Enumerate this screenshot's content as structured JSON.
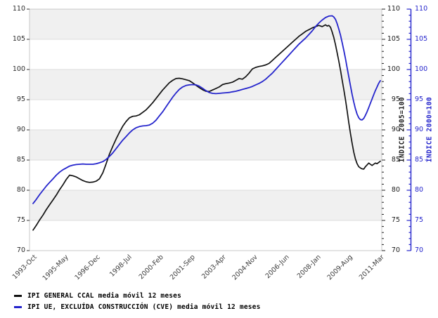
{
  "chart_data": {
    "type": "line",
    "title": "",
    "x_axis": {
      "tick_labels": [
        "1993-Oct",
        "1995-May",
        "1996-Dec",
        "1998-Jul",
        "2000-Feb",
        "2001-Sep",
        "2003-Apr",
        "2004-Nov",
        "2006-Jun",
        "2008-Jan",
        "2009-Aug",
        "2011-Mar"
      ],
      "tick_months": [
        0,
        19,
        38,
        57,
        76,
        95,
        114,
        133,
        152,
        171,
        190,
        209
      ],
      "months_total": 210
    },
    "y_axis": {
      "min": 70,
      "max": 110,
      "major_step": 5,
      "minor_step": 1,
      "major_ticks": [
        110,
        105,
        100,
        95,
        90,
        85,
        80,
        75,
        70
      ]
    },
    "axes_titles": {
      "right_black": {
        "title": "ÍNDICE 2005=100",
        "color": "#1a1a1a"
      },
      "right_blue": {
        "title": "ÍNDICE 2000=100",
        "color": "#2424cc"
      }
    },
    "bands": {
      "color": "#f0f0f0",
      "line_color": "#dcdcdc",
      "border_color": "#c8c8c8",
      "ranges": [
        [
          105,
          110
        ],
        [
          95,
          100
        ],
        [
          85,
          90
        ],
        [
          75,
          80
        ]
      ]
    },
    "legend_position": "bottom-left",
    "series": [
      {
        "name": "IPI GENERAL CCAL media móvil 12 meses",
        "color": "#111111",
        "points": [
          [
            0,
            73.4
          ],
          [
            2,
            74.2
          ],
          [
            4,
            75.1
          ],
          [
            6,
            75.9
          ],
          [
            8,
            76.8
          ],
          [
            10,
            77.6
          ],
          [
            12,
            78.4
          ],
          [
            14,
            79.2
          ],
          [
            16,
            80.1
          ],
          [
            18,
            80.9
          ],
          [
            20,
            81.8
          ],
          [
            22,
            82.5
          ],
          [
            24,
            82.4
          ],
          [
            26,
            82.2
          ],
          [
            28,
            81.9
          ],
          [
            30,
            81.6
          ],
          [
            32,
            81.4
          ],
          [
            34,
            81.3
          ],
          [
            36,
            81.35
          ],
          [
            38,
            81.5
          ],
          [
            40,
            81.9
          ],
          [
            42,
            82.9
          ],
          [
            44,
            84.4
          ],
          [
            46,
            86.0
          ],
          [
            48,
            87.3
          ],
          [
            50,
            88.5
          ],
          [
            52,
            89.6
          ],
          [
            54,
            90.6
          ],
          [
            56,
            91.4
          ],
          [
            58,
            92.0
          ],
          [
            60,
            92.25
          ],
          [
            62,
            92.3
          ],
          [
            64,
            92.5
          ],
          [
            66,
            92.9
          ],
          [
            68,
            93.3
          ],
          [
            70,
            93.9
          ],
          [
            72,
            94.5
          ],
          [
            74,
            95.2
          ],
          [
            76,
            95.9
          ],
          [
            78,
            96.6
          ],
          [
            80,
            97.2
          ],
          [
            82,
            97.8
          ],
          [
            84,
            98.2
          ],
          [
            86,
            98.5
          ],
          [
            88,
            98.55
          ],
          [
            90,
            98.45
          ],
          [
            92,
            98.3
          ],
          [
            94,
            98.15
          ],
          [
            96,
            97.8
          ],
          [
            98,
            97.4
          ],
          [
            100,
            97.0
          ],
          [
            102,
            96.65
          ],
          [
            104,
            96.4
          ],
          [
            106,
            96.35
          ],
          [
            108,
            96.6
          ],
          [
            110,
            96.85
          ],
          [
            112,
            97.1
          ],
          [
            114,
            97.5
          ],
          [
            116,
            97.65
          ],
          [
            118,
            97.75
          ],
          [
            120,
            97.9
          ],
          [
            122,
            98.2
          ],
          [
            124,
            98.5
          ],
          [
            126,
            98.4
          ],
          [
            128,
            98.8
          ],
          [
            130,
            99.4
          ],
          [
            132,
            100.1
          ],
          [
            134,
            100.35
          ],
          [
            136,
            100.5
          ],
          [
            138,
            100.6
          ],
          [
            140,
            100.75
          ],
          [
            142,
            101.0
          ],
          [
            144,
            101.5
          ],
          [
            146,
            102.0
          ],
          [
            148,
            102.5
          ],
          [
            150,
            103.0
          ],
          [
            152,
            103.5
          ],
          [
            154,
            104.0
          ],
          [
            156,
            104.5
          ],
          [
            158,
            105.0
          ],
          [
            160,
            105.5
          ],
          [
            162,
            105.9
          ],
          [
            164,
            106.3
          ],
          [
            166,
            106.6
          ],
          [
            168,
            106.9
          ],
          [
            170,
            107.1
          ],
          [
            172,
            107.3
          ],
          [
            174,
            107.1
          ],
          [
            176,
            107.4
          ],
          [
            177,
            107.2
          ],
          [
            178,
            107.3
          ],
          [
            179,
            107.0
          ],
          [
            180,
            106.2
          ],
          [
            181,
            105.3
          ],
          [
            182,
            104.1
          ],
          [
            183,
            102.8
          ],
          [
            184,
            101.4
          ],
          [
            185,
            99.9
          ],
          [
            186,
            98.3
          ],
          [
            187,
            96.7
          ],
          [
            188,
            95.0
          ],
          [
            189,
            93.2
          ],
          [
            190,
            91.2
          ],
          [
            191,
            89.4
          ],
          [
            192,
            87.8
          ],
          [
            193,
            86.3
          ],
          [
            194,
            85.2
          ],
          [
            195,
            84.4
          ],
          [
            196,
            83.9
          ],
          [
            197,
            83.7
          ],
          [
            198,
            83.55
          ],
          [
            199,
            83.5
          ],
          [
            200,
            83.9
          ],
          [
            201,
            84.2
          ],
          [
            202,
            84.5
          ],
          [
            203,
            84.3
          ],
          [
            204,
            84.1
          ],
          [
            205,
            84.3
          ],
          [
            206,
            84.5
          ],
          [
            207,
            84.4
          ],
          [
            208,
            84.6
          ],
          [
            209,
            84.8
          ]
        ]
      },
      {
        "name": "IPI UE, EXCLUÍDA CONSTRUCCIÓN (CVE) media móvil 12 meses",
        "color": "#2424cc",
        "points": [
          [
            0,
            77.8
          ],
          [
            2,
            78.5
          ],
          [
            4,
            79.3
          ],
          [
            6,
            80.0
          ],
          [
            8,
            80.7
          ],
          [
            10,
            81.3
          ],
          [
            12,
            81.9
          ],
          [
            14,
            82.5
          ],
          [
            16,
            83.0
          ],
          [
            18,
            83.4
          ],
          [
            20,
            83.7
          ],
          [
            22,
            84.0
          ],
          [
            24,
            84.15
          ],
          [
            26,
            84.25
          ],
          [
            28,
            84.3
          ],
          [
            30,
            84.35
          ],
          [
            32,
            84.3
          ],
          [
            34,
            84.3
          ],
          [
            36,
            84.3
          ],
          [
            38,
            84.4
          ],
          [
            40,
            84.55
          ],
          [
            42,
            84.75
          ],
          [
            44,
            85.1
          ],
          [
            46,
            85.6
          ],
          [
            48,
            86.2
          ],
          [
            50,
            86.9
          ],
          [
            52,
            87.6
          ],
          [
            54,
            88.3
          ],
          [
            56,
            88.9
          ],
          [
            58,
            89.5
          ],
          [
            60,
            90.0
          ],
          [
            62,
            90.35
          ],
          [
            64,
            90.55
          ],
          [
            66,
            90.65
          ],
          [
            68,
            90.7
          ],
          [
            70,
            90.8
          ],
          [
            72,
            91.1
          ],
          [
            74,
            91.6
          ],
          [
            76,
            92.3
          ],
          [
            78,
            93.0
          ],
          [
            80,
            93.8
          ],
          [
            82,
            94.6
          ],
          [
            84,
            95.4
          ],
          [
            86,
            96.1
          ],
          [
            88,
            96.7
          ],
          [
            90,
            97.1
          ],
          [
            92,
            97.35
          ],
          [
            94,
            97.45
          ],
          [
            96,
            97.5
          ],
          [
            98,
            97.45
          ],
          [
            100,
            97.25
          ],
          [
            102,
            96.9
          ],
          [
            104,
            96.5
          ],
          [
            106,
            96.2
          ],
          [
            108,
            96.05
          ],
          [
            110,
            96.0
          ],
          [
            112,
            96.05
          ],
          [
            114,
            96.1
          ],
          [
            116,
            96.15
          ],
          [
            118,
            96.2
          ],
          [
            120,
            96.3
          ],
          [
            122,
            96.4
          ],
          [
            124,
            96.55
          ],
          [
            126,
            96.7
          ],
          [
            128,
            96.85
          ],
          [
            130,
            97.0
          ],
          [
            132,
            97.2
          ],
          [
            134,
            97.45
          ],
          [
            136,
            97.7
          ],
          [
            138,
            98.0
          ],
          [
            140,
            98.4
          ],
          [
            142,
            98.9
          ],
          [
            144,
            99.4
          ],
          [
            146,
            100.0
          ],
          [
            148,
            100.6
          ],
          [
            150,
            101.2
          ],
          [
            152,
            101.8
          ],
          [
            154,
            102.4
          ],
          [
            156,
            103.0
          ],
          [
            158,
            103.6
          ],
          [
            160,
            104.2
          ],
          [
            162,
            104.7
          ],
          [
            164,
            105.2
          ],
          [
            166,
            105.8
          ],
          [
            168,
            106.4
          ],
          [
            170,
            107.1
          ],
          [
            172,
            107.7
          ],
          [
            174,
            108.2
          ],
          [
            176,
            108.6
          ],
          [
            178,
            108.85
          ],
          [
            180,
            108.9
          ],
          [
            181,
            108.7
          ],
          [
            182,
            108.3
          ],
          [
            183,
            107.6
          ],
          [
            184,
            106.7
          ],
          [
            185,
            105.7
          ],
          [
            186,
            104.5
          ],
          [
            187,
            103.2
          ],
          [
            188,
            101.8
          ],
          [
            189,
            100.3
          ],
          [
            190,
            98.8
          ],
          [
            191,
            97.3
          ],
          [
            192,
            95.9
          ],
          [
            193,
            94.6
          ],
          [
            194,
            93.5
          ],
          [
            195,
            92.6
          ],
          [
            196,
            92.0
          ],
          [
            197,
            91.7
          ],
          [
            198,
            91.65
          ],
          [
            199,
            91.9
          ],
          [
            200,
            92.4
          ],
          [
            201,
            93.0
          ],
          [
            202,
            93.7
          ],
          [
            203,
            94.4
          ],
          [
            204,
            95.1
          ],
          [
            205,
            95.8
          ],
          [
            206,
            96.5
          ],
          [
            207,
            97.1
          ],
          [
            208,
            97.7
          ],
          [
            209,
            98.15
          ]
        ]
      }
    ],
    "legend": {
      "items": [
        {
          "label": "IPI GENERAL CCAL media móvil 12 meses",
          "color": "#111111"
        },
        {
          "label": "IPI UE, EXCLUÍDA CONSTRUCCIÓN (CVE) media móvil 12 meses",
          "color": "#2424cc"
        }
      ]
    }
  }
}
